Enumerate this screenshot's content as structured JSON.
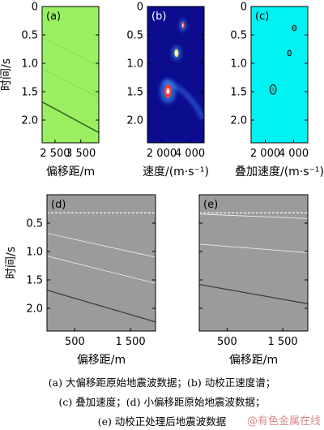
{
  "chart_data": [
    {
      "id": "a",
      "type": "line",
      "panel_label": "(a)",
      "background": "#9aef60",
      "xlabel": "偏移距/m",
      "ylabel": "时间/s",
      "xlim": [
        2000,
        4200
      ],
      "ylim": [
        0,
        2.4
      ],
      "y_inverted": true,
      "x_ticks": [
        2500,
        3500
      ],
      "x_tick_labels": [
        "2 500",
        "3 500"
      ],
      "y_ticks": [
        0,
        0.5,
        1.0,
        1.5,
        2.0
      ],
      "y_tick_labels": [
        "0",
        "0.5",
        "1.0",
        "1.5",
        "2.0"
      ],
      "show_ylabel": true,
      "series": [
        {
          "x": [
            2000,
            4200
          ],
          "y": [
            0.55,
            1.05
          ],
          "color": "#86d850",
          "width": 0.8
        },
        {
          "x": [
            2000,
            4200
          ],
          "y": [
            1.1,
            1.6
          ],
          "color": "#86d850",
          "width": 0.8
        },
        {
          "x": [
            2000,
            4200
          ],
          "y": [
            1.68,
            2.22
          ],
          "color": "#3a6a20",
          "width": 1.6
        }
      ]
    },
    {
      "id": "b",
      "type": "heatmap",
      "panel_label": "(b)",
      "background": "#0c0c8e",
      "xlabel": "速度/(m·s⁻¹)",
      "ylabel": "",
      "xlim": [
        1000,
        5000
      ],
      "ylim": [
        0,
        2.4
      ],
      "y_inverted": true,
      "x_ticks": [
        2000,
        4000
      ],
      "x_tick_labels": [
        "2 000",
        "4 000"
      ],
      "y_ticks": [
        0,
        0.5,
        1.0,
        1.5,
        2.0
      ],
      "y_tick_labels": [
        "0",
        "0.5",
        "1.0",
        "1.5",
        "2.0"
      ],
      "show_ylabel": false,
      "blobs": [
        {
          "v": 3500,
          "t": 0.33,
          "rx": 110,
          "ry": 0.06,
          "color": "#ff3b3b"
        },
        {
          "v": 3050,
          "t": 0.82,
          "rx": 150,
          "ry": 0.07,
          "color": "#ffe14a"
        },
        {
          "v": 2450,
          "t": 1.49,
          "rx": 260,
          "ry": 0.12,
          "color": "#ff3b3b"
        }
      ]
    },
    {
      "id": "c",
      "type": "scatter",
      "panel_label": "(c)",
      "background": "#00f2f2",
      "xlabel": "叠加速度/(m·s⁻¹)",
      "ylabel": "",
      "xlim": [
        1000,
        5000
      ],
      "ylim": [
        0,
        2.4
      ],
      "y_inverted": true,
      "x_ticks": [
        2000,
        4000
      ],
      "x_tick_labels": [
        "2 000",
        "4 000"
      ],
      "y_ticks": [
        0,
        0.5,
        1.0,
        1.5,
        2.0
      ],
      "y_tick_labels": [
        "0",
        "0.5",
        "1.0",
        "1.5",
        "2.0"
      ],
      "show_ylabel": false,
      "points": [
        {
          "v": 4050,
          "t": 0.38
        },
        {
          "v": 3700,
          "t": 0.82
        },
        {
          "v": 2550,
          "t": 1.46
        }
      ]
    },
    {
      "id": "d",
      "type": "line",
      "panel_label": "(d)",
      "background": "#9b9b9b",
      "xlabel": "偏移距/m",
      "ylabel": "时间/s",
      "xlim": [
        0,
        1950
      ],
      "ylim": [
        0,
        2.4
      ],
      "y_inverted": true,
      "x_ticks": [
        500,
        1500
      ],
      "x_tick_labels": [
        "500",
        "1 500"
      ],
      "y_ticks": [
        0.5,
        1.0,
        1.5,
        2.0
      ],
      "y_tick_labels": [
        "0.5",
        "1.0",
        "1.5",
        "2.0"
      ],
      "show_ylabel": true,
      "dashed_line_t": 0.32,
      "series": [
        {
          "x": [
            0,
            1950
          ],
          "y": [
            0.68,
            1.1
          ],
          "color": "#e6e6e6",
          "width": 0.9
        },
        {
          "x": [
            0,
            1950
          ],
          "y": [
            1.08,
            1.56
          ],
          "color": "#e6e6e6",
          "width": 0.9
        },
        {
          "x": [
            0,
            1950
          ],
          "y": [
            1.68,
            2.24
          ],
          "color": "#3a3a3a",
          "width": 1.2
        }
      ]
    },
    {
      "id": "e",
      "type": "line",
      "panel_label": "(e)",
      "background": "#9b9b9b",
      "xlabel": "偏移距/m",
      "ylabel": "",
      "xlim": [
        0,
        1950
      ],
      "ylim": [
        0,
        2.4
      ],
      "y_inverted": true,
      "x_ticks": [
        500,
        1500
      ],
      "x_tick_labels": [
        "500",
        "1 500"
      ],
      "y_ticks": [
        0.5,
        1.0,
        1.5,
        2.0
      ],
      "y_tick_labels": [
        "",
        "",
        "",
        ""
      ],
      "show_ylabel": false,
      "dashed_line_t": 0.32,
      "series": [
        {
          "x": [
            0,
            1950
          ],
          "y": [
            0.34,
            0.42
          ],
          "color": "#ececec",
          "width": 0.9
        },
        {
          "x": [
            0,
            1950
          ],
          "y": [
            0.87,
            1.02
          ],
          "color": "#ececec",
          "width": 0.9
        },
        {
          "x": [
            0,
            1950
          ],
          "y": [
            1.58,
            1.92
          ],
          "color": "#3a3a3a",
          "width": 1.2
        }
      ]
    }
  ],
  "caption": {
    "line1": "(a) 大偏移距原始地震波数据；(b) 动校正速度谱；",
    "line2": "(c) 叠加速度；(d) 小偏移距原始地震波数据；",
    "line3": "(e) 动校正处理后地震波数据"
  },
  "watermark": "@有色金属在线"
}
